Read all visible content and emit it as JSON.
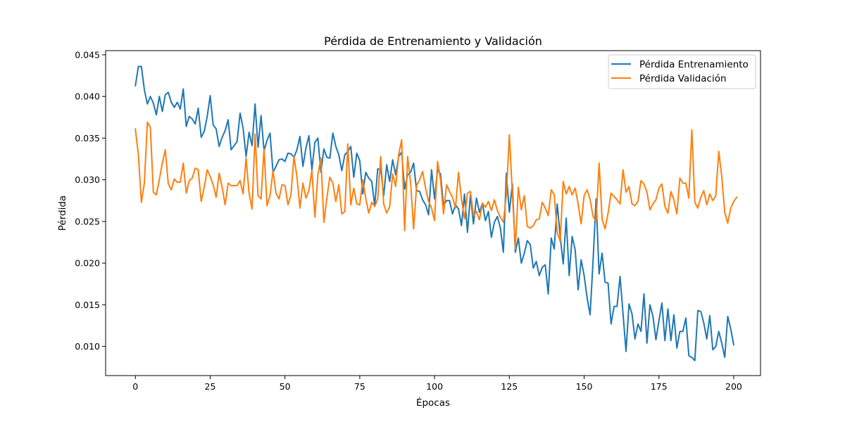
{
  "chart_data": {
    "type": "line",
    "title": "Pérdida de Entrenamiento y Validación",
    "xlabel": "Épocas",
    "ylabel": "Pérdida",
    "xlim": [
      -9.95,
      208.95
    ],
    "ylim": [
      0.0065,
      0.0455
    ],
    "xticks": [
      0,
      25,
      50,
      75,
      100,
      125,
      150,
      175,
      200
    ],
    "yticks": [
      0.01,
      0.015,
      0.02,
      0.025,
      0.03,
      0.035,
      0.04,
      0.045
    ],
    "ytick_labels": [
      "0.010",
      "0.015",
      "0.020",
      "0.025",
      "0.030",
      "0.035",
      "0.040",
      "0.045"
    ],
    "grid": false,
    "legend_position": "top-right",
    "series": [
      {
        "name": "Pérdida Entrenamiento",
        "color": "#1f77b4",
        "values": [
          0.0413,
          0.0436,
          0.0436,
          0.0408,
          0.0391,
          0.04,
          0.0392,
          0.0378,
          0.04,
          0.0382,
          0.0402,
          0.0405,
          0.0393,
          0.0387,
          0.0393,
          0.0385,
          0.0409,
          0.0364,
          0.0376,
          0.0373,
          0.0367,
          0.0386,
          0.0351,
          0.0358,
          0.0376,
          0.0401,
          0.0366,
          0.0361,
          0.034,
          0.0351,
          0.0359,
          0.0372,
          0.0336,
          0.0341,
          0.0346,
          0.038,
          0.0362,
          0.0328,
          0.0357,
          0.0341,
          0.0391,
          0.0339,
          0.0377,
          0.0335,
          0.0347,
          0.0356,
          0.0309,
          0.0316,
          0.0324,
          0.0325,
          0.0322,
          0.0332,
          0.0331,
          0.0327,
          0.0336,
          0.0352,
          0.0316,
          0.0338,
          0.0353,
          0.0312,
          0.0345,
          0.035,
          0.0309,
          0.0337,
          0.0327,
          0.0326,
          0.0356,
          0.034,
          0.033,
          0.0311,
          0.033,
          0.0334,
          0.034,
          0.0303,
          0.0332,
          0.0323,
          0.0283,
          0.0309,
          0.0302,
          0.0298,
          0.0269,
          0.0313,
          0.0313,
          0.0281,
          0.0318,
          0.0298,
          0.0324,
          0.0306,
          0.0328,
          0.0333,
          0.0289,
          0.0306,
          0.0309,
          0.032,
          0.0287,
          0.0286,
          0.0276,
          0.027,
          0.0258,
          0.0312,
          0.0277,
          0.0312,
          0.0307,
          0.0269,
          0.0275,
          0.0275,
          0.0259,
          0.027,
          0.0265,
          0.0245,
          0.0283,
          0.0237,
          0.0282,
          0.0247,
          0.0278,
          0.0261,
          0.0272,
          0.0251,
          0.0262,
          0.0231,
          0.0249,
          0.0256,
          0.0242,
          0.0213,
          0.0308,
          0.0261,
          0.0295,
          0.0213,
          0.023,
          0.02,
          0.0212,
          0.0227,
          0.0222,
          0.0194,
          0.0202,
          0.0185,
          0.0195,
          0.0198,
          0.0163,
          0.023,
          0.0217,
          0.0271,
          0.0232,
          0.0199,
          0.0254,
          0.0185,
          0.0232,
          0.0216,
          0.0168,
          0.0204,
          0.0185,
          0.0158,
          0.0138,
          0.0204,
          0.0277,
          0.0187,
          0.0212,
          0.0177,
          0.0176,
          0.0127,
          0.0148,
          0.0148,
          0.0184,
          0.0139,
          0.0094,
          0.0151,
          0.0139,
          0.0109,
          0.0127,
          0.0118,
          0.0163,
          0.0104,
          0.015,
          0.0136,
          0.0108,
          0.0131,
          0.0152,
          0.0107,
          0.0145,
          0.0107,
          0.0138,
          0.0098,
          0.0118,
          0.0118,
          0.0134,
          0.0089,
          0.0087,
          0.0083,
          0.0143,
          0.0142,
          0.0128,
          0.0109,
          0.0137,
          0.0096,
          0.01,
          0.0118,
          0.0104,
          0.0087,
          0.0136,
          0.0121,
          0.0102
        ]
      },
      {
        "name": "Pérdida Validación",
        "color": "#ff7f0e",
        "values": [
          0.0361,
          0.033,
          0.0273,
          0.0296,
          0.0369,
          0.0363,
          0.0285,
          0.0282,
          0.03,
          0.032,
          0.0336,
          0.0295,
          0.0288,
          0.0301,
          0.0297,
          0.0297,
          0.032,
          0.0284,
          0.0299,
          0.0302,
          0.0314,
          0.0312,
          0.0274,
          0.0291,
          0.0312,
          0.0304,
          0.0294,
          0.0279,
          0.0308,
          0.0291,
          0.027,
          0.0296,
          0.0293,
          0.0293,
          0.0293,
          0.0299,
          0.0283,
          0.0326,
          0.0284,
          0.0265,
          0.0355,
          0.0281,
          0.0277,
          0.0337,
          0.0269,
          0.0281,
          0.0311,
          0.0284,
          0.0277,
          0.0294,
          0.0293,
          0.027,
          0.0282,
          0.0328,
          0.0304,
          0.0266,
          0.0296,
          0.0278,
          0.0287,
          0.0311,
          0.0255,
          0.0306,
          0.0326,
          0.0249,
          0.0278,
          0.0303,
          0.0296,
          0.0274,
          0.0294,
          0.0259,
          0.0262,
          0.0343,
          0.027,
          0.029,
          0.0271,
          0.027,
          0.03,
          0.0278,
          0.026,
          0.0273,
          0.0268,
          0.0277,
          0.0328,
          0.0271,
          0.026,
          0.0268,
          0.0307,
          0.0292,
          0.033,
          0.0348,
          0.0239,
          0.0328,
          0.0296,
          0.0241,
          0.0293,
          0.03,
          0.031,
          0.029,
          0.0274,
          0.0266,
          0.0251,
          0.0322,
          0.03,
          0.0259,
          0.0294,
          0.0286,
          0.0279,
          0.0266,
          0.0309,
          0.0277,
          0.0253,
          0.0284,
          0.0286,
          0.0257,
          0.0262,
          0.0252,
          0.0272,
          0.0267,
          0.0274,
          0.0263,
          0.0276,
          0.0263,
          0.0255,
          0.0249,
          0.0282,
          0.0354,
          0.0284,
          0.0217,
          0.0291,
          0.0264,
          0.0281,
          0.0244,
          0.0242,
          0.0245,
          0.0252,
          0.0253,
          0.0273,
          0.0266,
          0.0257,
          0.0288,
          0.0282,
          0.0237,
          0.0226,
          0.0298,
          0.0283,
          0.0292,
          0.0282,
          0.029,
          0.0271,
          0.0247,
          0.0281,
          0.0288,
          0.0276,
          0.0256,
          0.025,
          0.032,
          0.0253,
          0.0241,
          0.026,
          0.0284,
          0.028,
          0.0276,
          0.0271,
          0.0312,
          0.0285,
          0.0292,
          0.0271,
          0.0269,
          0.0274,
          0.0299,
          0.0295,
          0.0285,
          0.0264,
          0.0271,
          0.0276,
          0.029,
          0.0295,
          0.0268,
          0.026,
          0.0286,
          0.0276,
          0.0259,
          0.0302,
          0.0296,
          0.0296,
          0.0278,
          0.036,
          0.0273,
          0.0266,
          0.0279,
          0.0287,
          0.027,
          0.0283,
          0.0275,
          0.0281,
          0.0334,
          0.0304,
          0.0261,
          0.0248,
          0.0266,
          0.0274,
          0.0279
        ]
      }
    ]
  }
}
